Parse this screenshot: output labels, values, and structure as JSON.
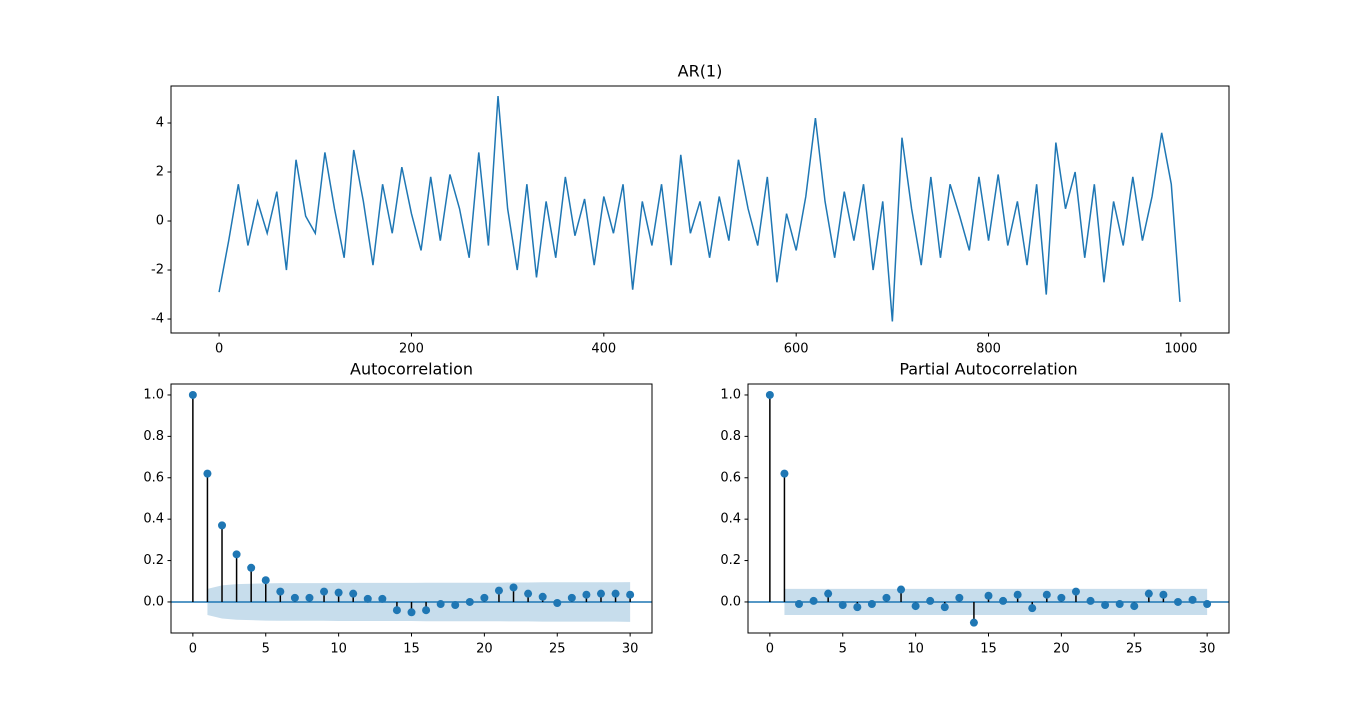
{
  "chart_data": [
    {
      "type": "line",
      "title": "AR(1)",
      "color": "#1f77b4",
      "x": [
        0,
        10,
        20,
        30,
        40,
        50,
        60,
        70,
        80,
        90,
        100,
        110,
        120,
        130,
        140,
        150,
        160,
        170,
        180,
        190,
        200,
        210,
        220,
        230,
        240,
        250,
        260,
        270,
        280,
        290,
        300,
        310,
        320,
        330,
        340,
        350,
        360,
        370,
        380,
        390,
        400,
        410,
        420,
        430,
        440,
        450,
        460,
        470,
        480,
        490,
        500,
        510,
        520,
        530,
        540,
        550,
        560,
        570,
        580,
        590,
        600,
        610,
        620,
        630,
        640,
        650,
        660,
        670,
        680,
        690,
        700,
        710,
        720,
        730,
        740,
        750,
        760,
        770,
        780,
        790,
        800,
        810,
        820,
        830,
        840,
        850,
        860,
        870,
        880,
        890,
        900,
        910,
        920,
        930,
        940,
        950,
        960,
        970,
        980,
        990,
        999
      ],
      "values": [
        -2.9,
        -0.8,
        1.5,
        -1.0,
        0.8,
        -0.5,
        1.2,
        -2.0,
        2.5,
        0.2,
        -0.5,
        2.8,
        0.5,
        -1.5,
        2.9,
        0.8,
        -1.8,
        1.5,
        -0.5,
        2.2,
        0.3,
        -1.2,
        1.8,
        -0.8,
        1.9,
        0.5,
        -1.5,
        2.8,
        -1.0,
        5.1,
        0.5,
        -2.0,
        1.5,
        -2.3,
        0.8,
        -1.5,
        1.8,
        -0.6,
        0.9,
        -1.8,
        1.0,
        -0.5,
        1.5,
        -2.8,
        0.8,
        -1.0,
        1.5,
        -1.8,
        2.7,
        -0.5,
        0.8,
        -1.5,
        1.0,
        -0.8,
        2.5,
        0.5,
        -1.0,
        1.8,
        -2.5,
        0.3,
        -1.2,
        1.0,
        4.2,
        0.8,
        -1.5,
        1.2,
        -0.8,
        1.5,
        -2.0,
        0.8,
        -4.1,
        3.4,
        0.5,
        -1.8,
        1.8,
        -1.5,
        1.5,
        0.2,
        -1.2,
        1.8,
        -0.8,
        1.9,
        -1.0,
        0.8,
        -1.8,
        1.5,
        -3.0,
        3.2,
        0.5,
        2.0,
        -1.5,
        1.5,
        -2.5,
        0.8,
        -1.0,
        1.8,
        -0.8,
        1.0,
        3.6,
        1.5,
        -3.3
      ],
      "xlim": [
        -50,
        1050
      ],
      "ylim": [
        -4.57,
        5.51
      ],
      "xticks": [
        0,
        200,
        400,
        600,
        800,
        1000
      ],
      "yticks": [
        -4,
        -2,
        0,
        2,
        4
      ]
    },
    {
      "type": "stem",
      "title": "Autocorrelation",
      "color": "#1f77b4",
      "stem_color": "#000000",
      "x": [
        0,
        1,
        2,
        3,
        4,
        5,
        6,
        7,
        8,
        9,
        10,
        11,
        12,
        13,
        14,
        15,
        16,
        17,
        18,
        19,
        20,
        21,
        22,
        23,
        24,
        25,
        26,
        27,
        28,
        29,
        30
      ],
      "values": [
        1.0,
        0.62,
        0.37,
        0.23,
        0.165,
        0.105,
        0.05,
        0.02,
        0.02,
        0.05,
        0.045,
        0.04,
        0.015,
        0.015,
        -0.04,
        -0.05,
        -0.04,
        -0.01,
        -0.015,
        0.0,
        0.02,
        0.055,
        0.07,
        0.04,
        0.025,
        -0.005,
        0.02,
        0.035,
        0.04,
        0.04,
        0.035
      ],
      "band_x": [
        1,
        2,
        3,
        4,
        5,
        6,
        7,
        8,
        9,
        10,
        11,
        12,
        13,
        14,
        15,
        16,
        17,
        18,
        19,
        20,
        21,
        22,
        23,
        24,
        25,
        26,
        27,
        28,
        29,
        30
      ],
      "band_upper": [
        0.063,
        0.08,
        0.086,
        0.088,
        0.09,
        0.091,
        0.091,
        0.091,
        0.091,
        0.092,
        0.092,
        0.092,
        0.092,
        0.092,
        0.092,
        0.093,
        0.093,
        0.093,
        0.093,
        0.093,
        0.093,
        0.094,
        0.094,
        0.095,
        0.095,
        0.095,
        0.095,
        0.095,
        0.095,
        0.096
      ],
      "band_lower": [
        -0.063,
        -0.08,
        -0.086,
        -0.088,
        -0.09,
        -0.091,
        -0.091,
        -0.091,
        -0.091,
        -0.092,
        -0.092,
        -0.092,
        -0.092,
        -0.092,
        -0.092,
        -0.093,
        -0.093,
        -0.093,
        -0.093,
        -0.093,
        -0.093,
        -0.094,
        -0.094,
        -0.095,
        -0.095,
        -0.095,
        -0.095,
        -0.095,
        -0.095,
        -0.096
      ],
      "xlim": [
        -1.5,
        31.5
      ],
      "ylim": [
        -0.15,
        1.053
      ],
      "xticks": [
        0,
        5,
        10,
        15,
        20,
        25,
        30
      ],
      "yticks": [
        {
          "value": 0,
          "label": "0.0"
        },
        0.2,
        0.4,
        0.6,
        0.8,
        {
          "value": 1,
          "label": "1.0"
        }
      ]
    },
    {
      "type": "stem",
      "title": "Partial Autocorrelation",
      "color": "#1f77b4",
      "stem_color": "#000000",
      "x": [
        0,
        1,
        2,
        3,
        4,
        5,
        6,
        7,
        8,
        9,
        10,
        11,
        12,
        13,
        14,
        15,
        16,
        17,
        18,
        19,
        20,
        21,
        22,
        23,
        24,
        25,
        26,
        27,
        28,
        29,
        30
      ],
      "values": [
        1.0,
        0.62,
        -0.01,
        0.005,
        0.04,
        -0.015,
        -0.025,
        -0.01,
        0.02,
        0.06,
        -0.02,
        0.005,
        -0.025,
        0.02,
        -0.1,
        0.03,
        0.005,
        0.035,
        -0.03,
        0.035,
        0.02,
        0.05,
        0.005,
        -0.015,
        -0.01,
        -0.02,
        0.04,
        0.035,
        0.0,
        0.01,
        -0.01
      ],
      "band_x": [
        1,
        30
      ],
      "band_upper": [
        0.063,
        0.063
      ],
      "band_lower": [
        -0.063,
        -0.063
      ],
      "xlim": [
        -1.5,
        31.5
      ],
      "ylim": [
        -0.15,
        1.053
      ],
      "xticks": [
        0,
        5,
        10,
        15,
        20,
        25,
        30
      ],
      "yticks": [
        {
          "value": 0,
          "label": "0.0"
        },
        0.2,
        0.4,
        0.6,
        0.8,
        {
          "value": 1,
          "label": "1.0"
        }
      ]
    }
  ]
}
